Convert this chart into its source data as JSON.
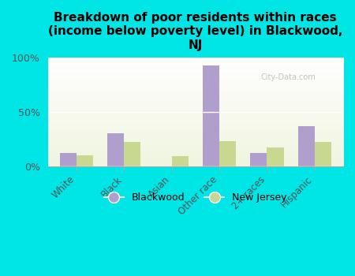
{
  "title": "Breakdown of poor residents within races\n(income below poverty level) in Blackwood,\nNJ",
  "categories": [
    "White",
    "Black",
    "Asian",
    "Other race",
    "2+ races",
    "Hispanic"
  ],
  "blackwood_values": [
    12,
    30,
    0,
    93,
    12,
    37
  ],
  "nj_values": [
    10,
    22,
    9,
    23,
    17,
    22
  ],
  "blackwood_color": "#b09fcc",
  "nj_color": "#c8d890",
  "background_color": "#00e5e5",
  "chart_bg_start": "#f0f5e0",
  "bar_width": 0.35,
  "ylim": [
    0,
    100
  ],
  "yticks": [
    0,
    50,
    100
  ],
  "ytick_labels": [
    "0%",
    "50%",
    "100%"
  ],
  "legend_blackwood": "Blackwood",
  "legend_nj": "New Jersey",
  "title_fontsize": 11,
  "watermark": "City-Data.com"
}
